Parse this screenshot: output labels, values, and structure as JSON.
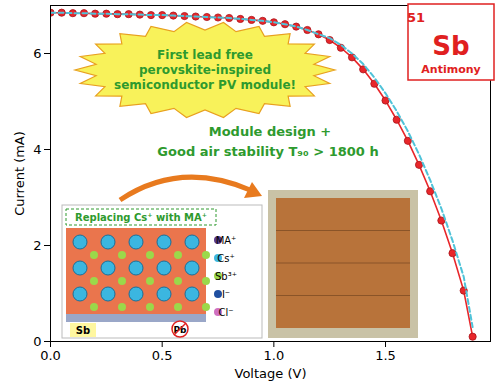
{
  "chart_data": {
    "type": "line",
    "x_label": "Voltage (V)",
    "y_label": "Current (mA)",
    "x": [
      0,
      0.05,
      0.1,
      0.15,
      0.2,
      0.25,
      0.3,
      0.35,
      0.4,
      0.45,
      0.5,
      0.55,
      0.6,
      0.65,
      0.7,
      0.75,
      0.8,
      0.85,
      0.9,
      0.95,
      1.0,
      1.05,
      1.1,
      1.15,
      1.2,
      1.25,
      1.3,
      1.35,
      1.4,
      1.45,
      1.5,
      1.55,
      1.6,
      1.65,
      1.7,
      1.75,
      1.8,
      1.85,
      1.89
    ],
    "series": [
      {
        "color": "#e8262a",
        "marker": "circle",
        "line_style": "solid",
        "values": [
          6.85,
          6.85,
          6.84,
          6.84,
          6.83,
          6.83,
          6.82,
          6.82,
          6.81,
          6.8,
          6.8,
          6.79,
          6.78,
          6.77,
          6.76,
          6.75,
          6.74,
          6.72,
          6.7,
          6.68,
          6.65,
          6.61,
          6.56,
          6.49,
          6.4,
          6.28,
          6.12,
          5.92,
          5.67,
          5.37,
          5.02,
          4.62,
          4.18,
          3.68,
          3.13,
          2.52,
          1.84,
          1.06,
          0.1
        ]
      },
      {
        "color": "#4fc3d9",
        "marker": "none",
        "line_style": "dashed",
        "values": [
          6.85,
          6.85,
          6.84,
          6.84,
          6.83,
          6.83,
          6.82,
          6.82,
          6.81,
          6.8,
          6.8,
          6.79,
          6.78,
          6.77,
          6.76,
          6.75,
          6.74,
          6.72,
          6.7,
          6.68,
          6.65,
          6.61,
          6.56,
          6.49,
          6.4,
          6.32,
          6.18,
          6.0,
          5.78,
          5.5,
          5.17,
          4.8,
          4.38,
          3.9,
          3.36,
          2.77,
          2.1,
          1.35,
          0.3
        ]
      }
    ],
    "xlim": [
      0,
      1.97
    ],
    "ylim": [
      0,
      7.0
    ],
    "xticks": [
      {
        "value": 0,
        "label": "0.0"
      },
      0.5,
      {
        "value": 1,
        "label": "1.0"
      },
      1.5
    ],
    "yticks": [
      0,
      2,
      4,
      6
    ],
    "grid": false,
    "annotations": [
      "First lead free perovskite-inspired semiconductor PV module!",
      "51",
      "Sb",
      "Antimony",
      "Module design +",
      "Good air stability T₉₀ > 1800 h",
      "Replacing Cs⁺ with MA⁺",
      "MA⁺",
      "Cs⁺",
      "Sb³⁺",
      "I⁻",
      "Cl⁻",
      "Sb",
      "Pb"
    ]
  }
}
